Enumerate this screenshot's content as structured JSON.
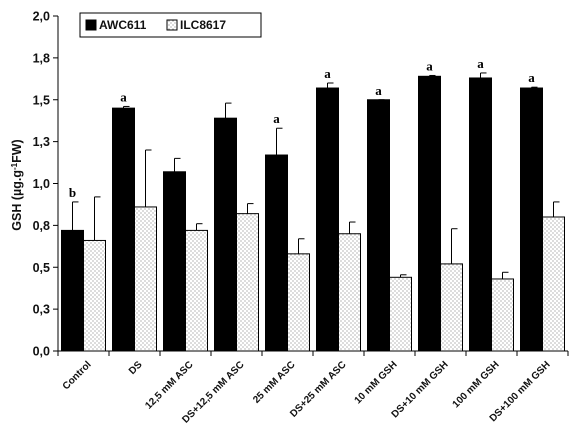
{
  "chart_data": {
    "type": "bar",
    "ylabel": "GSH (µg.g⁻¹FW)",
    "ylabel_parts": {
      "main": "GSH (µg.g",
      "sup": "-1",
      "tail": "FW)"
    },
    "ylim": [
      0,
      2.0
    ],
    "yticks": [
      {
        "value": 0.0,
        "label": "0,0"
      },
      {
        "value": 0.25,
        "label": "0,3"
      },
      {
        "value": 0.5,
        "label": "0,5"
      },
      {
        "value": 0.75,
        "label": "0,8"
      },
      {
        "value": 1.0,
        "label": "1,0"
      },
      {
        "value": 1.25,
        "label": "1,3"
      },
      {
        "value": 1.5,
        "label": "1,5"
      },
      {
        "value": 1.75,
        "label": "1,8"
      },
      {
        "value": 2.0,
        "label": "2,0"
      }
    ],
    "categories": [
      "Control",
      "DS",
      "12,5 mM ASC",
      "DS+12,5 mM ASC",
      "25 mM ASC",
      "DS+25 mM ASC",
      "10 mM GSH",
      "DS+10 mM GSH",
      "100 mM GSH",
      "DS+100 mM GSH"
    ],
    "series": [
      {
        "name": "AWC611",
        "color": "#000000",
        "pattern": "solid",
        "values": [
          0.72,
          1.45,
          1.07,
          1.39,
          1.17,
          1.57,
          1.5,
          1.64,
          1.63,
          1.57
        ],
        "errors": [
          0.17,
          0.01,
          0.08,
          0.09,
          0.16,
          0.03,
          0.0,
          0.005,
          0.03,
          0.005
        ]
      },
      {
        "name": "ILC8617",
        "color": "#ffffff",
        "pattern": "dots",
        "values": [
          0.66,
          0.86,
          0.72,
          0.82,
          0.58,
          0.7,
          0.44,
          0.52,
          0.43,
          0.8
        ],
        "errors": [
          0.26,
          0.34,
          0.04,
          0.06,
          0.09,
          0.07,
          0.015,
          0.21,
          0.04,
          0.09
        ]
      }
    ],
    "annotations": [
      {
        "category": "Control",
        "series": "AWC611",
        "text": "b"
      },
      {
        "category": "DS",
        "series": "AWC611",
        "text": "a"
      },
      {
        "category": "25 mM ASC",
        "series": "AWC611",
        "text": "a"
      },
      {
        "category": "DS+25 mM ASC",
        "series": "AWC611",
        "text": "a"
      },
      {
        "category": "10 mM GSH",
        "series": "AWC611",
        "text": "a"
      },
      {
        "category": "DS+10 mM GSH",
        "series": "AWC611",
        "text": "a"
      },
      {
        "category": "100 mM GSH",
        "series": "AWC611",
        "text": "a"
      },
      {
        "category": "DS+100 mM GSH",
        "series": "AWC611",
        "text": "a"
      }
    ],
    "legend": {
      "placement": "top-left",
      "entries": [
        {
          "label": "AWC611",
          "pattern": "solid"
        },
        {
          "label": "ILC8617",
          "pattern": "dots"
        }
      ]
    },
    "grid": false
  }
}
